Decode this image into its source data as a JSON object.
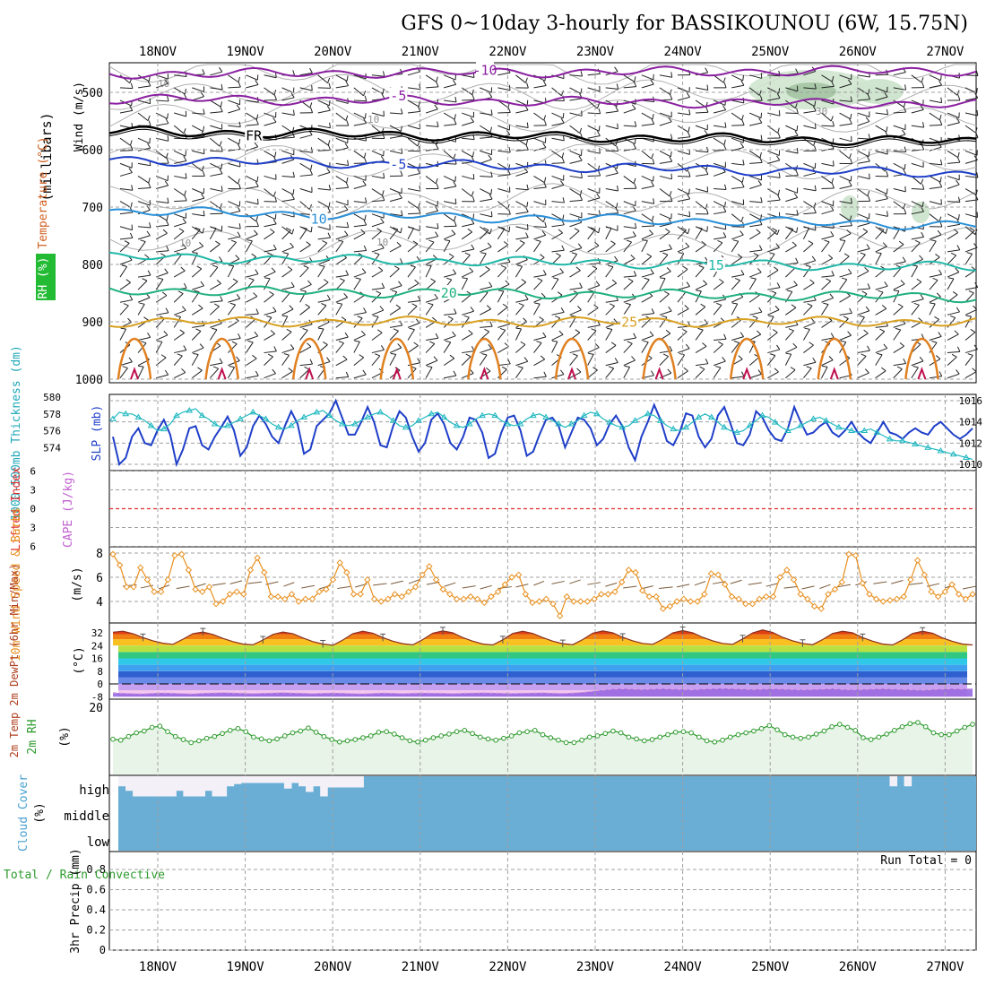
{
  "title": "GFS 0~10day 3-hourly for BASSIKOUNOU (6W, 15.75N)",
  "colors": {
    "grid": "#a0a0a0",
    "slp": "#1f3fc8",
    "thickness": "#20b8c0",
    "lifted_index": "#e03030",
    "wind_speed": "#e89020",
    "wind_barb": "#7a5a3a",
    "dewpoint": "#a070d0",
    "rh": "#2e9a2e",
    "rh_fill": "#e8f4e8",
    "cloud": "#6aaed6",
    "cloud_clear": "#f4f0f8",
    "temp_dark": "#8a3020"
  },
  "chart_data": [
    {
      "panel": "upper-air",
      "type": "contour",
      "title": "",
      "x_ticks": [
        "18NOV",
        "19NOV",
        "20NOV",
        "21NOV",
        "22NOV",
        "23NOV",
        "24NOV",
        "25NOV",
        "26NOV",
        "27NOV"
      ],
      "y_ticks": [
        500,
        600,
        700,
        800,
        900,
        1000
      ],
      "y_label": "(millibars)",
      "side_labels": [
        "Wind (m/s)",
        "Temperature (°C)",
        "RH (%)"
      ],
      "isotherms": [
        {
          "label": "-10",
          "level": 468,
          "color": "#8a20a0"
        },
        {
          "label": "-5",
          "level": 511,
          "color": "#8a20a0"
        },
        {
          "label": "FR",
          "level": 568,
          "color": "#000000"
        },
        {
          "label": "-5",
          "level": 617,
          "color": "#1f3fc8"
        },
        {
          "label": "10",
          "level": 707,
          "color": "#2a90d8"
        },
        {
          "label": "15",
          "level": 787,
          "color": "#20b8a8"
        },
        {
          "label": "20",
          "level": 845,
          "color": "#20b080"
        },
        {
          "label": "25",
          "level": 900,
          "color": "#d8a020"
        }
      ],
      "rh_contour_labels": [
        "10",
        "10",
        "10",
        "10",
        "30"
      ]
    },
    {
      "panel": "pressure",
      "type": "line",
      "title": "",
      "left_label": "1000-500mb Thickness (dm)",
      "right_label": "SLP (mb)",
      "thickness_ticks": [
        574,
        576,
        578,
        580
      ],
      "slp_ticks": [
        1010,
        1012,
        1014,
        1016
      ],
      "series": [
        {
          "name": "SLP",
          "values": [
            1012.6,
            1010.0,
            1010.6,
            1012.6,
            1013.4,
            1012.0,
            1011.8,
            1013.2,
            1014.2,
            1012.8,
            1010.0,
            1011.4,
            1013.4,
            1013.6,
            1011.8,
            1011.4,
            1012.6,
            1013.5,
            1014.5,
            1013.2,
            1010.8,
            1011.6,
            1013.6,
            1014.6,
            1013.8,
            1012.6,
            1012.0,
            1013.6,
            1015.0,
            1013.8,
            1011.0,
            1011.4,
            1013.6,
            1014.2,
            1014.8,
            1016.0,
            1014.4,
            1012.8,
            1012.8,
            1014.0,
            1015.4,
            1014.0,
            1011.8,
            1011.6,
            1013.6,
            1015.0,
            1014.4,
            1012.6,
            1011.2,
            1012.0,
            1014.2,
            1014.8,
            1013.8,
            1012.0,
            1011.4,
            1012.6,
            1014.4,
            1014.2,
            1013.0,
            1010.6,
            1011.0,
            1013.0,
            1014.4,
            1014.6,
            1013.2,
            1010.8,
            1011.2,
            1012.8,
            1014.2,
            1014.4,
            1013.6,
            1011.6,
            1013.0,
            1014.4,
            1014.2,
            1013.4,
            1011.8,
            1012.4,
            1013.8,
            1014.6,
            1013.6,
            1011.6,
            1010.4,
            1012.6,
            1014.0,
            1015.6,
            1014.2,
            1012.2,
            1011.8,
            1013.0,
            1014.8,
            1014.6,
            1012.6,
            1011.6,
            1012.4,
            1014.6,
            1015.4,
            1013.8,
            1012.0,
            1011.8,
            1012.8,
            1015.0,
            1014.4,
            1013.2,
            1012.4,
            1012.2,
            1013.4,
            1015.4,
            1014.0,
            1012.8,
            1013.0,
            1013.6,
            1014.0,
            1013.0,
            1012.6,
            1013.2,
            1014.0,
            1013.0,
            1012.4,
            1012.0,
            1013.0,
            1014.0,
            1013.0,
            1012.8,
            1012.4,
            1013.0,
            1013.4,
            1013.0,
            1012.8,
            1013.6,
            1014.0,
            1013.4,
            1012.8,
            1012.4,
            1012.8,
            1013.4
          ]
        },
        {
          "name": "Thickness",
          "values": [
            577.4,
            578.2,
            578.0,
            578.0,
            577.6,
            577.2,
            576.6,
            576.0,
            576.2,
            576.8,
            577.8,
            578.2,
            578.4,
            578.6,
            577.8,
            577.4,
            576.8,
            576.4,
            576.6,
            577.0,
            577.4,
            577.8,
            578.2,
            577.8,
            577.4,
            576.8,
            576.4,
            576.2,
            576.6,
            577.2,
            577.6,
            577.9,
            578.2,
            578.4,
            577.8,
            577.2,
            576.8,
            576.6,
            576.8,
            577.2,
            577.6,
            578.0,
            578.2,
            577.8,
            577.2,
            576.6,
            576.4,
            576.6,
            577.2,
            577.6,
            578.0,
            578.2,
            577.6,
            577.0,
            576.6,
            576.4,
            576.8,
            577.4,
            577.8,
            578.0,
            577.8,
            577.2,
            576.8,
            576.6,
            576.8,
            577.4,
            577.8,
            578.0,
            577.6,
            577.2,
            576.8,
            576.4,
            576.8,
            577.2,
            577.8,
            578.2,
            578.0,
            577.4,
            577.0,
            576.6,
            576.4,
            576.6,
            577.2,
            577.6,
            578.0,
            577.8,
            577.2,
            576.6,
            576.2,
            576.0,
            576.4,
            577.0,
            577.6,
            578.0,
            577.6,
            577.0,
            576.4,
            576.0,
            575.8,
            576.0,
            576.6,
            577.2,
            577.8,
            577.6,
            577.0,
            576.4,
            576.0,
            576.2,
            576.6,
            577.0,
            577.4,
            577.6,
            577.2,
            576.8,
            576.4,
            576.2,
            576.0,
            575.8,
            576.0,
            576.2,
            575.8,
            575.4,
            575.0,
            574.8,
            574.8,
            574.6,
            574.4,
            574.2,
            574.0,
            573.8,
            573.6,
            573.4,
            573.2,
            573.0,
            572.8,
            572.6
          ]
        }
      ]
    },
    {
      "panel": "instability",
      "type": "line",
      "title": "",
      "left_label": "Lifted Index",
      "right_label": "CAPE (J/kg)",
      "li_ticks": [
        -6,
        -3,
        0,
        3,
        6
      ],
      "lifted_index_values": [
        0
      ]
    },
    {
      "panel": "wind10m",
      "type": "line",
      "title": "",
      "left_label": "10m Wind Speed & Barbs",
      "unit": "(m/s)",
      "y_ticks": [
        4,
        6,
        8
      ],
      "values": [
        7.9,
        7.0,
        5.2,
        5.2,
        6.8,
        5.8,
        4.8,
        4.8,
        5.8,
        7.8,
        7.9,
        6.6,
        5.0,
        4.8,
        5.2,
        3.8,
        4.0,
        4.6,
        4.8,
        4.6,
        6.6,
        7.6,
        6.4,
        4.4,
        4.4,
        4.2,
        4.6,
        4.0,
        4.2,
        4.2,
        4.8,
        5.0,
        5.8,
        7.2,
        6.4,
        4.6,
        4.6,
        5.8,
        4.2,
        4.0,
        4.2,
        4.6,
        4.4,
        4.8,
        5.2,
        6.2,
        6.9,
        5.8,
        5.0,
        4.6,
        4.2,
        4.2,
        4.4,
        4.2,
        3.9,
        4.4,
        4.8,
        5.4,
        6.0,
        6.2,
        4.6,
        3.9,
        4.0,
        4.2,
        3.8,
        2.8,
        4.4,
        4.0,
        4.0,
        4.0,
        4.2,
        4.6,
        4.6,
        4.8,
        5.6,
        6.6,
        6.4,
        4.9,
        4.4,
        4.4,
        3.4,
        3.6,
        4.0,
        4.2,
        4.0,
        4.0,
        4.6,
        6.3,
        6.2,
        5.4,
        4.4,
        4.2,
        3.8,
        3.8,
        4.2,
        4.4,
        4.4,
        6.0,
        6.6,
        5.8,
        4.6,
        4.2,
        3.6,
        3.4,
        4.6,
        5.0,
        5.6,
        7.9,
        7.8,
        5.5,
        4.6,
        4.2,
        4.0,
        4.1,
        4.2,
        4.4,
        5.8,
        7.4,
        6.2,
        4.8,
        4.4,
        4.8,
        5.4,
        4.6,
        4.2,
        4.6
      ]
    },
    {
      "panel": "temperature",
      "type": "area",
      "title": "",
      "left_label": "2m Temp 2m DewPt (6hr Min/Max)",
      "unit": "(°C)",
      "y_ticks": [
        -8,
        0,
        8,
        16,
        24,
        32
      ],
      "temp_values": [
        32.4,
        33.0,
        31.5,
        29.0,
        27.0,
        25.5,
        24.8,
        28.0,
        31.5,
        32.5,
        31.0,
        28.5,
        26.5,
        25.0,
        24.5,
        27.5,
        31.0,
        32.5,
        31.5,
        28.8,
        26.5,
        25.0,
        24.2,
        27.5,
        31.5,
        33.0,
        31.8,
        29.0,
        26.8,
        25.2,
        24.5,
        27.8,
        31.8,
        33.2,
        32.0,
        29.0,
        26.8,
        25.0,
        24.4,
        27.6,
        31.6,
        33.0,
        31.6,
        29.0,
        26.8,
        25.2,
        24.6,
        27.8,
        31.8,
        33.2,
        32.0,
        29.2,
        27.0,
        25.4,
        24.8,
        28.0,
        32.0,
        33.4,
        32.0,
        29.2,
        27.0,
        25.4,
        24.8,
        28.2,
        32.0,
        33.8,
        32.2,
        29.2,
        27.0,
        25.4,
        24.6,
        27.8,
        31.6,
        33.0,
        32.0,
        29.0,
        26.8,
        25.0,
        24.4,
        27.6,
        31.6,
        33.0,
        31.8,
        28.8,
        26.6,
        25.0,
        24.4
      ],
      "dewpoint_values": [
        -5.5,
        -5.8,
        -6.0,
        -6.2,
        -5.8,
        -5.6,
        -5.8,
        -6.0,
        -6.2,
        -5.8,
        -5.6,
        -5.4,
        -5.6,
        -5.8,
        -6.0,
        -5.8,
        -5.6,
        -5.4,
        -5.6,
        -5.8,
        -6.0,
        -5.8,
        -5.6,
        -5.8,
        -6.0,
        -6.2,
        -5.9,
        -5.6,
        -5.8,
        -6.0,
        -5.8,
        -5.6,
        -5.7,
        -5.8,
        -6.0,
        -5.8,
        -5.6,
        -5.5,
        -5.6,
        -5.8,
        -5.9,
        -5.7,
        -5.6,
        -5.5,
        -5.7,
        -5.9,
        -5.6,
        -5.2,
        -4.5,
        -3.8,
        -3.2,
        -3.0,
        -3.2,
        -3.4,
        -3.2,
        -3.0,
        -3.2,
        -3.4,
        -3.6,
        -3.2,
        -3.0,
        -2.8,
        -3.0,
        -3.2,
        -3.4,
        -3.2,
        -3.0,
        -3.2,
        -3.4,
        -3.6,
        -3.5,
        -3.2,
        -3.0,
        -3.4,
        -3.6,
        -3.4,
        -3.2,
        -3.0,
        -3.2,
        -3.4,
        -3.6,
        -3.8,
        -3.5,
        -3.2,
        -3.0,
        -3.2,
        -3.0
      ]
    },
    {
      "panel": "humidity",
      "type": "line",
      "title": "",
      "left_label": "2m RH",
      "unit": "(%)",
      "y_ticks": [
        20
      ],
      "values": [
        9.5,
        9.2,
        10.4,
        11.6,
        12.2,
        13.4,
        13.8,
        12.0,
        10.4,
        9.4,
        8.4,
        9.0,
        9.8,
        10.4,
        11.4,
        12.4,
        13.0,
        12.0,
        10.2,
        9.6,
        9.0,
        9.6,
        10.6,
        11.6,
        12.2,
        13.2,
        11.8,
        10.4,
        9.4,
        8.6,
        9.0,
        9.4,
        10.0,
        10.6,
        11.8,
        12.0,
        11.2,
        10.0,
        9.0,
        8.6,
        9.2,
        10.0,
        10.6,
        11.2,
        12.0,
        12.4,
        11.4,
        10.2,
        9.6,
        9.2,
        9.8,
        10.6,
        11.6,
        12.0,
        12.4,
        11.0,
        10.0,
        9.2,
        8.4,
        8.4,
        9.2,
        10.2,
        10.6,
        11.4,
        12.2,
        11.6,
        10.2,
        9.6,
        9.0,
        9.4,
        10.2,
        11.0,
        11.8,
        12.0,
        11.6,
        10.2,
        9.0,
        8.6,
        9.2,
        10.2,
        11.0,
        11.6,
        12.2,
        13.0,
        14.0,
        12.6,
        11.0,
        10.2,
        9.8,
        10.2,
        11.2,
        12.2,
        13.6,
        14.4,
        13.4,
        12.4,
        10.0,
        9.4,
        10.2,
        11.2,
        12.4,
        13.6,
        14.6,
        15.0,
        13.6,
        11.6,
        11.0,
        11.0,
        12.2,
        13.4,
        14.4
      ]
    },
    {
      "panel": "cloud",
      "type": "area",
      "title": "",
      "left_label": "Cloud Cover",
      "unit": "(%)",
      "y_ticks": [
        "high",
        "middle",
        "low"
      ],
      "high_clear_fraction": [
        0.45,
        0.65,
        0.9,
        0.9,
        0.9,
        0.9,
        0.9,
        0.9,
        0.65,
        0.9,
        0.9,
        0.9,
        0.65,
        0.9,
        0.9,
        0.45,
        0.35,
        0.3,
        0.3,
        0.3,
        0.3,
        0.3,
        0.3,
        0.55,
        0.3,
        0.45,
        0.7,
        0.45,
        0.9,
        0.5,
        0.5,
        0.5,
        0.5,
        0.5,
        0.0,
        0.0,
        0.0,
        0.0,
        0.0,
        0.0,
        0.0,
        0.0,
        0.0,
        0.0,
        0.0,
        0.0,
        0.0,
        0.0,
        0.0,
        0.0,
        0.0,
        0.0,
        0.0,
        0.0,
        0.0,
        0.0,
        0.0,
        0.0,
        0.0,
        0.0,
        0.0,
        0.0,
        0.0,
        0.0,
        0.0,
        0.0,
        0.0,
        0.0,
        0.0,
        0.0,
        0.0,
        0.0,
        0.0,
        0.0,
        0.0,
        0.0,
        0.0,
        0.0,
        0.0,
        0.0,
        0.0,
        0.0,
        0.0,
        0.0,
        0.0,
        0.0,
        0.0,
        0.0,
        0.0,
        0.0,
        0.0,
        0.0,
        0.0,
        0.0,
        0.0,
        0.0,
        0.0,
        0.0,
        0.0,
        0.0,
        0.0,
        0.0,
        0.0,
        0.0,
        0.0,
        0.0,
        0.0,
        0.45,
        0.0,
        0.45,
        0.0,
        0.0,
        0.0,
        0.0,
        0.0,
        0.0,
        0.0,
        0.0,
        0.0
      ]
    },
    {
      "panel": "precip",
      "type": "bar",
      "title": "",
      "left_label": "Total / Rain Convective",
      "axis_label": "3hr Precip (mm)",
      "y_ticks": [
        0,
        0.2,
        0.4,
        0.6,
        0.8
      ],
      "run_total": "Run Total = 0",
      "values": [
        0
      ]
    }
  ]
}
